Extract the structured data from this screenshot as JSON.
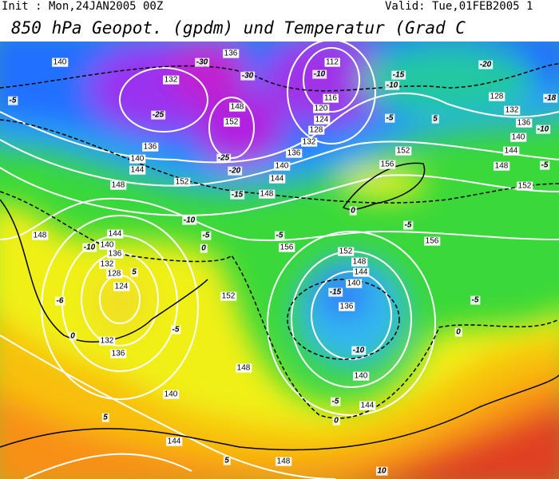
{
  "header": {
    "init": "Init : Mon,24JAN2005 00Z",
    "valid": "Valid: Tue,01FEB2005 1",
    "title": "850 hPa Geopot. (gpdm) und Temperatur (Grad C"
  },
  "geopotential_labels": [
    140,
    136,
    112,
    132,
    116,
    148,
    120,
    152,
    124,
    128,
    128,
    132,
    136,
    140,
    144,
    148,
    152,
    136,
    140,
    144,
    132,
    136,
    140,
    144,
    148,
    152,
    156,
    148,
    152,
    148,
    144,
    140,
    136,
    132,
    128,
    124,
    156,
    156,
    152,
    148,
    144,
    140,
    136,
    152,
    132,
    136,
    140,
    148,
    140,
    144,
    144,
    148
  ],
  "temperature_labels": [
    -30,
    -30,
    -20,
    -10,
    -15,
    -10,
    -5,
    -25,
    -5,
    5,
    -10,
    -18,
    -20,
    -15,
    0,
    -10,
    -5,
    -5,
    -5,
    -10,
    5,
    -6,
    0,
    -15,
    -5,
    0,
    -5,
    0,
    -10,
    -5,
    0,
    5,
    5,
    10,
    -5,
    -25
  ]
}
